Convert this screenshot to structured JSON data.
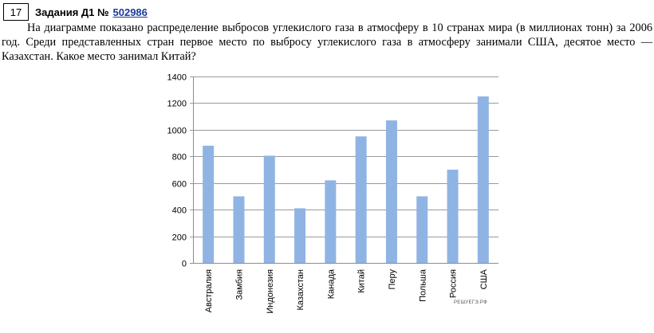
{
  "task": {
    "number": "17",
    "title": "Задания Д1 №",
    "link": "502986"
  },
  "question": "На диаграмме показано распределение выбросов углекислого газа в атмосферу в 10 странах мира (в миллионах тонн) за 2006 год. Среди представленных стран первое место по выбросу углекислого газа в атмосферу занимали США, десятое место — Казахстан. Какое место занимал Китай?",
  "watermark": "РЕШУЕГЭ.РФ",
  "colors": {
    "bar": "#8fb4e3",
    "grid": "#9a9a9a",
    "axis": "#8c8c8c"
  },
  "chart_data": {
    "type": "bar",
    "categories": [
      "Австралия",
      "Замбия",
      "Индонезия",
      "Казахстан",
      "Канада",
      "Китай",
      "Перу",
      "Польша",
      "Россия",
      "США"
    ],
    "values": [
      880,
      500,
      805,
      410,
      620,
      950,
      1070,
      500,
      700,
      1250
    ],
    "ylim": [
      0,
      1400
    ],
    "yticks": [
      0,
      200,
      400,
      600,
      800,
      1000,
      1200,
      1400
    ],
    "grid": true,
    "legend": "none"
  }
}
